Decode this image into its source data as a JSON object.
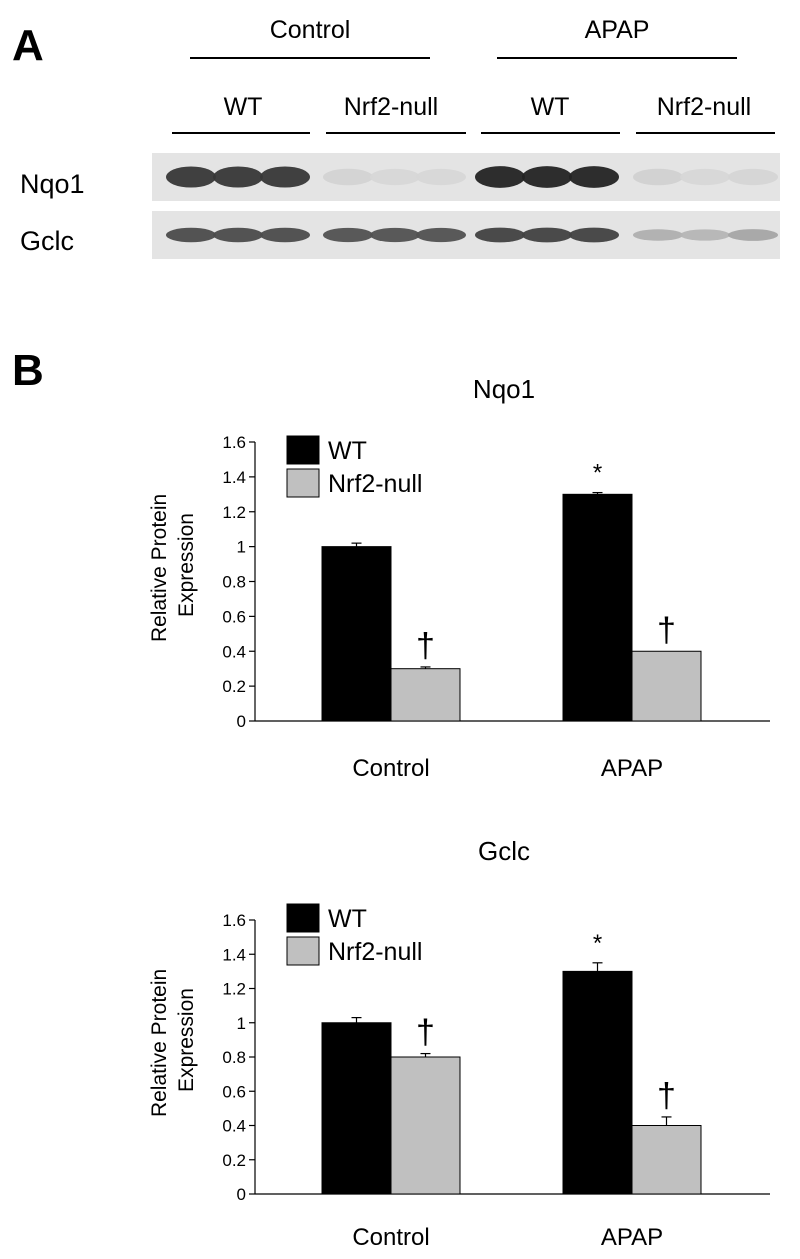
{
  "panel_a": {
    "label": "A",
    "groups": [
      "Control",
      "APAP"
    ],
    "subgroups": [
      "WT",
      "Nrf2-null",
      "WT",
      "Nrf2-null"
    ],
    "blots": [
      {
        "name": "Nqo1",
        "band_intensity": [
          0.85,
          0.85,
          0.85,
          0.07,
          0.05,
          0.05,
          0.95,
          0.95,
          0.95,
          0.08,
          0.05,
          0.06
        ]
      },
      {
        "name": "Gclc",
        "band_intensity": [
          0.75,
          0.75,
          0.75,
          0.72,
          0.72,
          0.72,
          0.8,
          0.8,
          0.8,
          0.25,
          0.22,
          0.3
        ]
      }
    ]
  },
  "panel_b": {
    "label": "B"
  },
  "chart_data": [
    {
      "type": "bar",
      "title": "Nqo1",
      "ylabel": "Relative Protein Expression",
      "ylim": [
        0,
        1.6
      ],
      "yticks": [
        "0",
        "0.2",
        "0.4",
        "0.6",
        "0.8",
        "1",
        "1.2",
        "1.4",
        "1.6"
      ],
      "categories": [
        "Control",
        "APAP"
      ],
      "series": [
        {
          "name": "WT",
          "color": "#000000",
          "values": [
            1.0,
            1.3
          ],
          "errors": [
            0.02,
            0.01
          ],
          "annotations": [
            "",
            "*"
          ]
        },
        {
          "name": "Nrf2-null",
          "color": "#c0c0c0",
          "values": [
            0.3,
            0.4
          ],
          "errors": [
            0.01,
            0.0
          ],
          "annotations": [
            "†",
            "†"
          ]
        }
      ],
      "legend": "top-left",
      "grid": false
    },
    {
      "type": "bar",
      "title": "Gclc",
      "ylabel": "Relative Protein Expression",
      "ylim": [
        0,
        1.6
      ],
      "yticks": [
        "0",
        "0.2",
        "0.4",
        "0.6",
        "0.8",
        "1",
        "1.2",
        "1.4",
        "1.6"
      ],
      "categories": [
        "Control",
        "APAP"
      ],
      "series": [
        {
          "name": "WT",
          "color": "#000000",
          "values": [
            1.0,
            1.3
          ],
          "errors": [
            0.03,
            0.05
          ],
          "annotations": [
            "",
            "*"
          ]
        },
        {
          "name": "Nrf2-null",
          "color": "#c0c0c0",
          "values": [
            0.8,
            0.4
          ],
          "errors": [
            0.02,
            0.05
          ],
          "annotations": [
            "†",
            "†"
          ]
        }
      ],
      "legend": "top-left",
      "grid": false
    }
  ]
}
